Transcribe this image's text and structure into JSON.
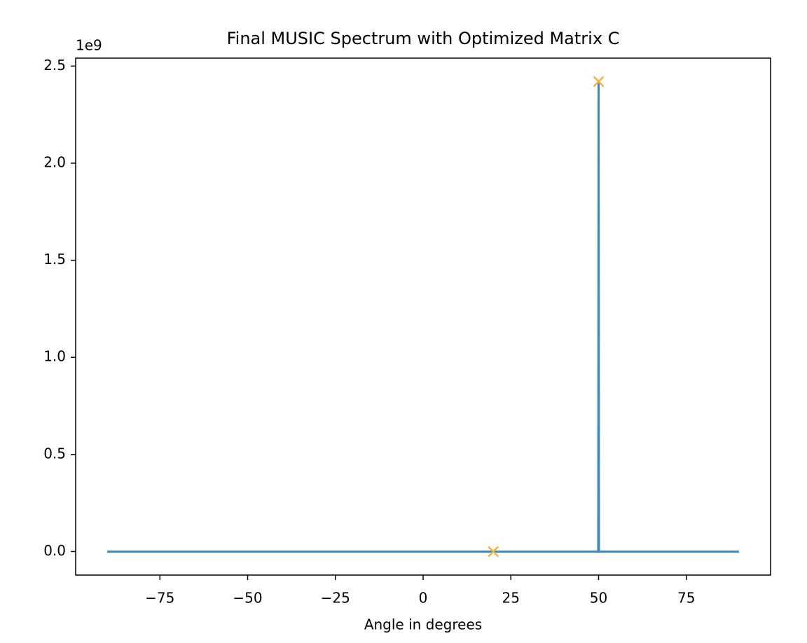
{
  "chart_data": {
    "type": "line",
    "title": "Final MUSIC Spectrum with Optimized Matrix C",
    "x_label": "Angle in degrees",
    "y_offset_label": "1e9",
    "xlim": [
      -99,
      99
    ],
    "ylim": [
      -121000000,
      2541000000
    ],
    "xticks": [
      {
        "value": -75,
        "label": "−75"
      },
      {
        "value": -50,
        "label": "−50"
      },
      {
        "value": -25,
        "label": "−25"
      },
      0,
      25,
      50,
      75
    ],
    "yticks": [
      {
        "value": 0,
        "label": "0.0"
      },
      {
        "value": 500000000,
        "label": "0.5"
      },
      {
        "value": 1000000000,
        "label": "1.0"
      },
      {
        "value": 1500000000,
        "label": "1.5"
      },
      {
        "value": 2000000000,
        "label": "2.0"
      },
      {
        "value": 2500000000,
        "label": "2.5"
      }
    ],
    "grid": false,
    "series": [
      {
        "mode": "line",
        "color": "#3f88c1",
        "x": [
          -90,
          49.9,
          50,
          50.1,
          90
        ],
        "values": [
          0,
          0,
          2420000000,
          0,
          0
        ]
      },
      {
        "mode": "markers",
        "color": "#f2b13f",
        "x": [
          20,
          50
        ],
        "values": [
          0,
          2420000000
        ]
      }
    ]
  }
}
